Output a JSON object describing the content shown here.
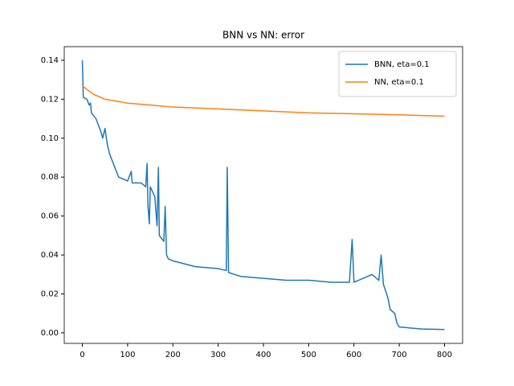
{
  "chart_data": {
    "type": "line",
    "title": "BNN vs NN: error",
    "series": [
      {
        "name": "BNN, eta=0.1",
        "color": "#1f77b4",
        "x": [
          0,
          2,
          10,
          15,
          18,
          20,
          30,
          40,
          45,
          50,
          55,
          60,
          70,
          80,
          100,
          108,
          110,
          130,
          140,
          143,
          145,
          148,
          150,
          160,
          165,
          168,
          170,
          180,
          183,
          186,
          190,
          200,
          250,
          300,
          318,
          320,
          323,
          350,
          400,
          450,
          500,
          550,
          590,
          596,
          600,
          620,
          640,
          655,
          660,
          665,
          675,
          680,
          690,
          695,
          700,
          750,
          800
        ],
        "values": [
          0.14,
          0.121,
          0.12,
          0.117,
          0.118,
          0.113,
          0.11,
          0.104,
          0.1,
          0.105,
          0.097,
          0.092,
          0.086,
          0.08,
          0.078,
          0.083,
          0.077,
          0.077,
          0.075,
          0.087,
          0.065,
          0.056,
          0.075,
          0.07,
          0.055,
          0.085,
          0.05,
          0.047,
          0.065,
          0.04,
          0.038,
          0.037,
          0.034,
          0.033,
          0.032,
          0.085,
          0.031,
          0.029,
          0.028,
          0.027,
          0.027,
          0.026,
          0.026,
          0.048,
          0.026,
          0.028,
          0.03,
          0.027,
          0.04,
          0.025,
          0.018,
          0.012,
          0.01,
          0.005,
          0.003,
          0.002,
          0.0017
        ]
      },
      {
        "name": "NN, eta=0.1",
        "color": "#ff7f0e",
        "x": [
          0,
          10,
          25,
          50,
          100,
          150,
          200,
          300,
          400,
          500,
          600,
          700,
          800
        ],
        "values": [
          0.127,
          0.125,
          0.1225,
          0.12,
          0.118,
          0.117,
          0.116,
          0.115,
          0.114,
          0.113,
          0.1125,
          0.112,
          0.1113
        ]
      }
    ],
    "xlim": [
      -40,
      840
    ],
    "ylim": [
      -0.0054,
      0.147
    ],
    "xticks": [
      0,
      100,
      200,
      300,
      400,
      500,
      600,
      700,
      800
    ],
    "yticks": [
      {
        "value": 0,
        "label": "0.00"
      },
      {
        "value": 0.02,
        "label": "0.02"
      },
      {
        "value": 0.04,
        "label": "0.04"
      },
      {
        "value": 0.06,
        "label": "0.06"
      },
      {
        "value": 0.08,
        "label": "0.08"
      },
      {
        "value": 0.1,
        "label": "0.10"
      },
      {
        "value": 0.12,
        "label": "0.12"
      },
      {
        "value": 0.14,
        "label": "0.14"
      }
    ],
    "legend": "upper right"
  }
}
